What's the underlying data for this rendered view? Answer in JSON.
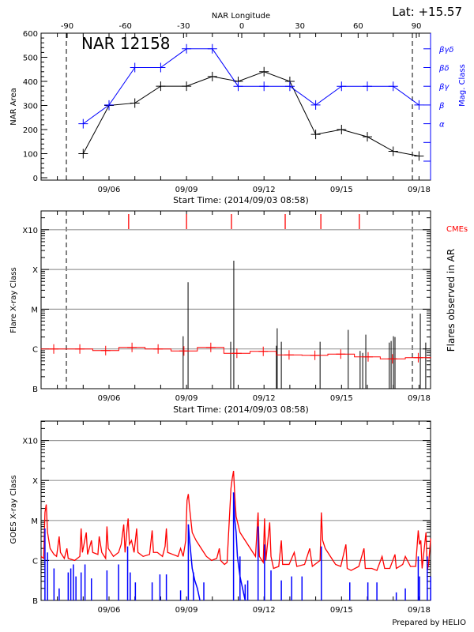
{
  "header": {
    "lat_label": "Lat: +15.57",
    "region_title": "NAR 12158",
    "footer": "Prepared by HELIO"
  },
  "colors": {
    "area": "#000000",
    "mag": "#0000ff",
    "flare_mean": "#ff0000",
    "cme": "#ff0000",
    "goes_long": "#ff0000",
    "goes_short": "#0000ff",
    "grid": "#999999"
  },
  "chart_data": [
    {
      "type": "line",
      "title": "NAR 12158",
      "xlabel": "Start Time: (2014/09/03 08:58)",
      "x_units": "days since 2014/09/03 08:58",
      "xlim": [
        0,
        15.08
      ],
      "x_tick_labels": [
        "09/06",
        "09/09",
        "09/12",
        "09/15",
        "09/18"
      ],
      "x_tick_days": [
        2.63,
        5.63,
        8.63,
        11.63,
        14.63
      ],
      "top_axis": {
        "label": "NAR Longitude",
        "ticks": [
          "-90",
          "-60",
          "-30",
          "0",
          "30",
          "60",
          "90"
        ],
        "values": [
          -90,
          -60,
          -30,
          0,
          30,
          60,
          90
        ]
      },
      "limb_longitudes": [
        -90,
        90
      ],
      "ylabel": "NAR Area",
      "ylim": [
        0,
        600
      ],
      "y_ticks": [
        "0",
        "100",
        "200",
        "300",
        "400",
        "500",
        "600"
      ],
      "y2label": "Mag. Class",
      "y2_levels": [
        {
          "label": "α",
          "level": 2
        },
        {
          "label": "β",
          "level": 3
        },
        {
          "label": "βγ",
          "level": 4
        },
        {
          "label": "βδ",
          "level": 5
        },
        {
          "label": "βγδ",
          "level": 6
        }
      ],
      "x": [
        1.63,
        2.63,
        3.63,
        4.63,
        5.63,
        6.63,
        7.63,
        8.63,
        9.63,
        10.63,
        11.63,
        12.63,
        13.63,
        14.63
      ],
      "series": [
        {
          "name": "NAR Area",
          "values": [
            100,
            300,
            310,
            380,
            380,
            420,
            400,
            440,
            400,
            180,
            200,
            170,
            110,
            90
          ]
        },
        {
          "name": "Mag. Class",
          "values": [
            "α",
            "β",
            "βδ",
            "βδ",
            "βγδ",
            "βγδ",
            "βγ",
            "βγ",
            "βγ",
            "β",
            "βγ",
            "βγ",
            "βγ",
            "β"
          ]
        }
      ]
    },
    {
      "type": "bar",
      "xlabel": "Start Time: (2014/09/03 08:58)",
      "ylabel": "Flare X-ray Class",
      "y2label": "Flares observed in AR",
      "y_ticks": [
        "B",
        "C",
        "M",
        "X",
        "X10"
      ],
      "ylim_levels": [
        0,
        4.48
      ],
      "cme_label": "CMEs",
      "cme_days": [
        3.39,
        5.63,
        7.37,
        9.45,
        10.83,
        12.32
      ],
      "flares": [
        [
          5.5,
          1.32
        ],
        [
          5.69,
          2.68
        ],
        [
          7.34,
          1.18
        ],
        [
          7.46,
          3.22
        ],
        [
          9.11,
          1.08
        ],
        [
          9.14,
          1.52
        ],
        [
          9.3,
          1.18
        ],
        [
          10.8,
          1.18
        ],
        [
          11.89,
          1.48
        ],
        [
          12.35,
          0.95
        ],
        [
          12.45,
          0.9
        ],
        [
          12.57,
          1.36
        ],
        [
          13.48,
          1.16
        ],
        [
          13.55,
          1.2
        ],
        [
          13.64,
          1.32
        ],
        [
          13.7,
          1.3
        ],
        [
          14.68,
          1.89
        ],
        [
          14.89,
          1.16
        ]
      ],
      "mean_level": [
        [
          0.49,
          1.0
        ],
        [
          1.5,
          1.0
        ],
        [
          2.5,
          0.96
        ],
        [
          3.52,
          1.04
        ],
        [
          4.53,
          1.0
        ],
        [
          5.53,
          0.95
        ],
        [
          6.57,
          1.04
        ],
        [
          7.58,
          0.89
        ],
        [
          8.6,
          0.94
        ],
        [
          9.6,
          0.85
        ],
        [
          10.6,
          0.84
        ],
        [
          11.6,
          0.87
        ],
        [
          12.66,
          0.8
        ],
        [
          13.6,
          0.75
        ],
        [
          14.6,
          0.78
        ]
      ]
    },
    {
      "type": "line",
      "ylabel": "GOES X-ray Class",
      "y_ticks": [
        "B",
        "C",
        "M",
        "X",
        "X10"
      ],
      "ylim_levels": [
        0,
        4.47
      ],
      "goes_long": [
        [
          0,
          1.1
        ],
        [
          0.1,
          1.05
        ],
        [
          0.15,
          2.2
        ],
        [
          0.2,
          2.4
        ],
        [
          0.25,
          1.7
        ],
        [
          0.35,
          1.3
        ],
        [
          0.5,
          1.15
        ],
        [
          0.6,
          1.1
        ],
        [
          0.7,
          1.6
        ],
        [
          0.75,
          1.2
        ],
        [
          0.9,
          1.05
        ],
        [
          1.0,
          1.3
        ],
        [
          1.05,
          1.05
        ],
        [
          1.3,
          1.0
        ],
        [
          1.5,
          1.1
        ],
        [
          1.55,
          1.8
        ],
        [
          1.6,
          1.2
        ],
        [
          1.75,
          1.7
        ],
        [
          1.8,
          1.15
        ],
        [
          1.95,
          1.5
        ],
        [
          2.0,
          1.2
        ],
        [
          2.2,
          1.15
        ],
        [
          2.25,
          1.6
        ],
        [
          2.35,
          1.2
        ],
        [
          2.5,
          1.05
        ],
        [
          2.55,
          1.85
        ],
        [
          2.6,
          1.3
        ],
        [
          2.8,
          1.1
        ],
        [
          3.0,
          1.2
        ],
        [
          3.1,
          1.4
        ],
        [
          3.2,
          1.9
        ],
        [
          3.25,
          1.2
        ],
        [
          3.33,
          1.8
        ],
        [
          3.37,
          2.05
        ],
        [
          3.42,
          1.4
        ],
        [
          3.5,
          1.5
        ],
        [
          3.6,
          1.2
        ],
        [
          3.7,
          1.8
        ],
        [
          3.75,
          1.2
        ],
        [
          3.95,
          1.1
        ],
        [
          4.2,
          1.15
        ],
        [
          4.3,
          1.75
        ],
        [
          4.35,
          1.2
        ],
        [
          4.5,
          1.2
        ],
        [
          4.7,
          1.1
        ],
        [
          4.8,
          1.35
        ],
        [
          4.85,
          1.8
        ],
        [
          4.9,
          1.2
        ],
        [
          5.1,
          1.15
        ],
        [
          5.3,
          1.1
        ],
        [
          5.4,
          1.3
        ],
        [
          5.5,
          1.1
        ],
        [
          5.6,
          1.5
        ],
        [
          5.65,
          2.5
        ],
        [
          5.7,
          2.66
        ],
        [
          5.75,
          2.3
        ],
        [
          5.85,
          1.7
        ],
        [
          6.0,
          1.5
        ],
        [
          6.2,
          1.3
        ],
        [
          6.4,
          1.1
        ],
        [
          6.6,
          1.0
        ],
        [
          6.8,
          1.05
        ],
        [
          6.9,
          1.3
        ],
        [
          6.95,
          1.0
        ],
        [
          7.1,
          0.9
        ],
        [
          7.2,
          0.95
        ],
        [
          7.35,
          2.8
        ],
        [
          7.4,
          3.05
        ],
        [
          7.45,
          3.24
        ],
        [
          7.5,
          2.6
        ],
        [
          7.55,
          2.1
        ],
        [
          7.7,
          1.7
        ],
        [
          7.9,
          1.5
        ],
        [
          8.1,
          1.3
        ],
        [
          8.3,
          1.1
        ],
        [
          8.4,
          2.2
        ],
        [
          8.45,
          1.1
        ],
        [
          8.6,
          0.95
        ],
        [
          8.65,
          2.05
        ],
        [
          8.7,
          1.0
        ],
        [
          8.85,
          1.95
        ],
        [
          8.9,
          1.1
        ],
        [
          9.0,
          0.8
        ],
        [
          9.2,
          0.85
        ],
        [
          9.3,
          1.5
        ],
        [
          9.35,
          0.9
        ],
        [
          9.6,
          0.9
        ],
        [
          9.8,
          1.2
        ],
        [
          9.9,
          0.85
        ],
        [
          10.2,
          0.9
        ],
        [
          10.4,
          1.3
        ],
        [
          10.5,
          0.85
        ],
        [
          10.8,
          1.0
        ],
        [
          10.85,
          2.2
        ],
        [
          10.9,
          1.5
        ],
        [
          11.0,
          1.3
        ],
        [
          11.2,
          1.1
        ],
        [
          11.4,
          0.9
        ],
        [
          11.6,
          0.85
        ],
        [
          11.8,
          1.4
        ],
        [
          11.85,
          0.8
        ],
        [
          12.0,
          0.75
        ],
        [
          12.3,
          0.85
        ],
        [
          12.5,
          1.3
        ],
        [
          12.55,
          0.8
        ],
        [
          12.8,
          0.8
        ],
        [
          13.0,
          0.75
        ],
        [
          13.2,
          1.1
        ],
        [
          13.3,
          0.8
        ],
        [
          13.5,
          0.8
        ],
        [
          13.7,
          1.15
        ],
        [
          13.75,
          0.8
        ],
        [
          14.0,
          0.9
        ],
        [
          14.1,
          1.1
        ],
        [
          14.3,
          0.85
        ],
        [
          14.5,
          0.85
        ],
        [
          14.6,
          1.75
        ],
        [
          14.65,
          1.4
        ],
        [
          14.7,
          1.5
        ],
        [
          14.75,
          0.8
        ],
        [
          14.9,
          1.7
        ],
        [
          14.95,
          0.75
        ],
        [
          15.0,
          0.9
        ],
        [
          15.08,
          1.55
        ]
      ],
      "goes_short_spikes": [
        [
          0.15,
          1.8
        ],
        [
          0.25,
          1.2
        ],
        [
          0.5,
          0.8
        ],
        [
          0.7,
          0.3
        ],
        [
          1.05,
          0.7
        ],
        [
          1.15,
          0.8
        ],
        [
          1.25,
          0.9
        ],
        [
          1.35,
          0.6
        ],
        [
          1.55,
          0.7
        ],
        [
          1.7,
          0.9
        ],
        [
          1.95,
          0.55
        ],
        [
          2.55,
          0.75
        ],
        [
          3.0,
          0.9
        ],
        [
          3.35,
          1.35
        ],
        [
          3.45,
          0.7
        ],
        [
          3.65,
          0.45
        ],
        [
          4.3,
          0.45
        ],
        [
          4.6,
          0.65
        ],
        [
          4.85,
          0.65
        ],
        [
          5.4,
          0.25
        ],
        [
          5.7,
          1.9
        ],
        [
          5.9,
          0.7
        ],
        [
          6.3,
          0.45
        ],
        [
          7.45,
          2.7
        ],
        [
          7.7,
          1.1
        ],
        [
          7.9,
          0.4
        ],
        [
          8.0,
          0.5
        ],
        [
          8.4,
          1.85
        ],
        [
          8.65,
          1.4
        ],
        [
          8.9,
          0.75
        ],
        [
          9.3,
          0.5
        ],
        [
          9.7,
          0.6
        ],
        [
          10.1,
          0.6
        ],
        [
          10.85,
          1.35
        ],
        [
          11.95,
          0.45
        ],
        [
          12.65,
          0.45
        ],
        [
          13.0,
          0.45
        ],
        [
          13.75,
          0.2
        ],
        [
          14.1,
          0.3
        ],
        [
          14.6,
          1.1
        ],
        [
          14.65,
          0.6
        ],
        [
          14.95,
          1.1
        ],
        [
          15.08,
          0.6
        ]
      ],
      "goes_short_decays": [
        [
          [
            5.7,
            1.9
          ],
          [
            5.75,
            1.5
          ],
          [
            5.85,
            0.8
          ],
          [
            5.95,
            0.5
          ],
          [
            6.05,
            0.3
          ],
          [
            6.15,
            0
          ]
        ],
        [
          [
            7.45,
            2.7
          ],
          [
            7.5,
            2.0
          ],
          [
            7.55,
            1.7
          ],
          [
            7.6,
            1.1
          ],
          [
            7.7,
            0.6
          ],
          [
            7.8,
            0.3
          ],
          [
            7.9,
            0
          ]
        ]
      ]
    }
  ]
}
